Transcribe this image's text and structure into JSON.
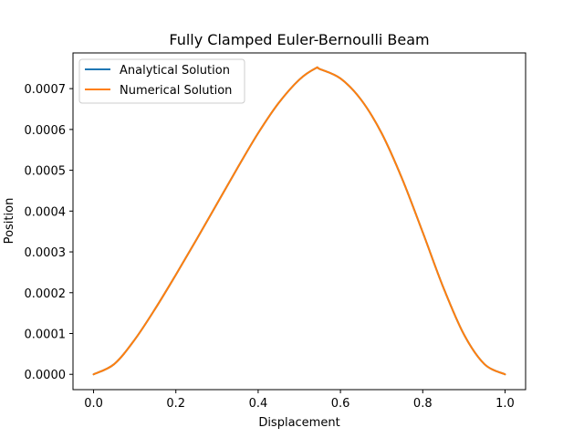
{
  "chart_data": {
    "type": "line",
    "title": "Fully Clamped Euler-Bernoulli Beam",
    "xlabel": "Displacement",
    "ylabel": "Position",
    "xlim": [
      -0.05,
      1.05
    ],
    "ylim": [
      -3.75e-05,
      0.0007875
    ],
    "xticks": [
      0.0,
      0.2,
      0.4,
      0.6,
      0.8,
      1.0
    ],
    "xtick_labels": [
      "0.0",
      "0.2",
      "0.4",
      "0.6",
      "0.8",
      "1.0"
    ],
    "yticks": [
      0.0,
      0.0001,
      0.0002,
      0.0003,
      0.0004,
      0.0005,
      0.0006,
      0.0007
    ],
    "ytick_labels": [
      "0.0000",
      "0.0001",
      "0.0002",
      "0.0003",
      "0.0004",
      "0.0005",
      "0.0006",
      "0.0007"
    ],
    "grid": false,
    "legend_position": "upper-left",
    "x": [
      0.0,
      0.05,
      0.1,
      0.15,
      0.2,
      0.25,
      0.3,
      0.35,
      0.4,
      0.45,
      0.5,
      0.54,
      0.55,
      0.6,
      0.65,
      0.7,
      0.75,
      0.8,
      0.85,
      0.9,
      0.95,
      1.0
    ],
    "series": [
      {
        "name": "Analytical Solution",
        "color": "#1f77b4",
        "values": [
          0.0,
          2.5e-05,
          8.5e-05,
          0.000161,
          0.000244,
          0.00033,
          0.000418,
          0.000506,
          0.000591,
          0.000665,
          0.000722,
          0.00075,
          0.000748,
          0.000725,
          0.000673,
          0.000591,
          0.000479,
          0.000348,
          0.000213,
          9.8e-05,
          2.5e-05,
          0.0
        ]
      },
      {
        "name": "Numerical Solution",
        "color": "#ff7f0e",
        "values": [
          0.0,
          2.5e-05,
          8.5e-05,
          0.000161,
          0.000244,
          0.00033,
          0.000418,
          0.000506,
          0.000591,
          0.000665,
          0.000722,
          0.00075,
          0.000748,
          0.000725,
          0.000673,
          0.000591,
          0.000479,
          0.000348,
          0.000213,
          9.8e-05,
          2.5e-05,
          0.0
        ]
      }
    ]
  }
}
